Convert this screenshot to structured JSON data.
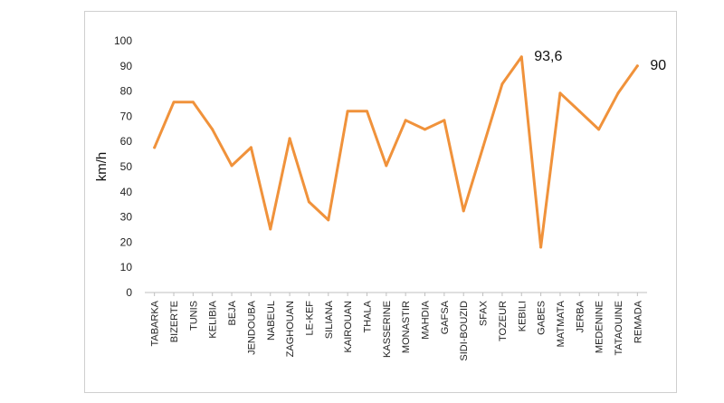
{
  "chart_data": {
    "type": "line",
    "title": "",
    "xlabel": "",
    "ylabel": "km/h",
    "ylim": [
      0,
      100
    ],
    "yticks": [
      "0",
      "10",
      "20",
      "30",
      "40",
      "50",
      "60",
      "70",
      "80",
      "90",
      "100"
    ],
    "grid": false,
    "legend": "none",
    "categories": [
      "TABARKA",
      "BIZERTE",
      "TUNIS",
      "KELIBIA",
      "BEJA",
      "JENDOUBA",
      "NABEUL",
      "ZAGHOUAN",
      "LE-KEF",
      "SILIANA",
      "KAIROUAN",
      "THALA",
      "KASSERINE",
      "MONASTIR",
      "MAHDIA",
      "GAFSA",
      "SIDI-BOUZID",
      "SFAX",
      "TOZEUR",
      "KEBILI",
      "GABES",
      "MATMATA",
      "JERBA",
      "MEDENINE",
      "TATAOUINE",
      "REMADA"
    ],
    "series": [
      {
        "values": [
          57.6,
          75.6,
          75.6,
          64.8,
          50.4,
          57.6,
          25.2,
          61.2,
          36,
          28.8,
          72,
          72,
          50.4,
          68.4,
          64.8,
          68.4,
          32.4,
          57.6,
          82.8,
          93.6,
          18,
          79.2,
          72,
          64.8,
          79.2,
          90
        ],
        "color": "#F0923B"
      }
    ],
    "annotations": [
      {
        "category": "KEBILI",
        "text": "93,6"
      },
      {
        "category": "REMADA",
        "text": "90"
      }
    ]
  }
}
